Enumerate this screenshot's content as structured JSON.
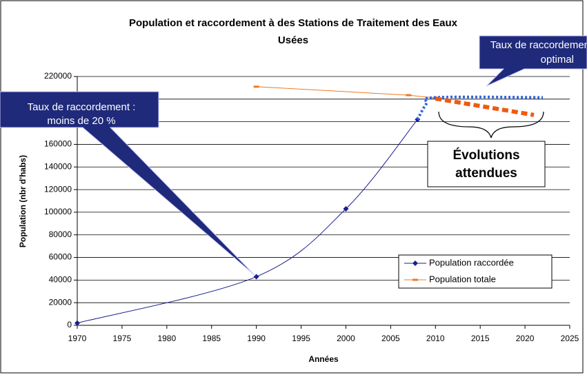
{
  "chart_data": {
    "type": "line",
    "title": [
      "Population et raccordement à des Stations de Traitement des Eaux",
      "Usées"
    ],
    "xlabel": "Années",
    "ylabel": "Population (nbr d'habs)",
    "xlim": [
      1970,
      2025
    ],
    "xticks": [
      1970,
      1975,
      1980,
      1985,
      1990,
      1995,
      2000,
      2005,
      2010,
      2015,
      2020,
      2025
    ],
    "ylim": [
      0,
      220000
    ],
    "yticks": [
      0,
      20000,
      40000,
      60000,
      80000,
      100000,
      120000,
      140000,
      160000,
      180000,
      200000,
      220000
    ],
    "grid": true,
    "legend": "lower right",
    "series": [
      {
        "name": "Population raccordée",
        "color": "#1a1f8c",
        "marker": "diamond",
        "smooth": true,
        "width": 1,
        "x": [
          1970,
          1990,
          2000,
          2008
        ],
        "values": [
          2000,
          43000,
          103000,
          182000
        ]
      },
      {
        "name": "Population totale",
        "color": "#f07820",
        "marker": "dash",
        "smooth": false,
        "width": 1,
        "x": [
          1990,
          2007,
          2010
        ],
        "values": [
          211000,
          203500,
          201000
        ]
      },
      {
        "color": "#3366dd",
        "dash": "dotted",
        "smooth": true,
        "width": 4,
        "x": [
          2008,
          2009,
          2010,
          2022
        ],
        "values": [
          182000,
          196000,
          201500,
          201500
        ]
      },
      {
        "color": "#f05a10",
        "dash": "dashed",
        "smooth": false,
        "width": 6,
        "x": [
          2010,
          2021
        ],
        "values": [
          200500,
          186000
        ]
      }
    ],
    "annotations": [
      {
        "text": [
          "Taux de raccordement :",
          "moins de 20 %"
        ]
      },
      {
        "text": [
          "Taux de raccordement",
          "optimal"
        ]
      },
      {
        "text": [
          "Évolutions",
          "attendues"
        ]
      }
    ]
  }
}
